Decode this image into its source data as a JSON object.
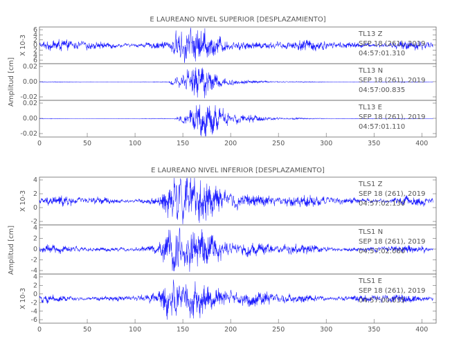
{
  "chart_data": [
    {
      "type": "line",
      "title": "E LAUREANO NIVEL SUPERIOR [DESPLAZAMIENTO]",
      "ylabel": "Amplitud [cm]",
      "x_ticks": [
        "0",
        "50",
        "100",
        "150",
        "200",
        "250",
        "300",
        "350",
        "400"
      ],
      "xlim": [
        0,
        415
      ],
      "channels": [
        {
          "station": "TL13",
          "component": "Z",
          "date": "SEP 18 (261), 2019",
          "time": "04:57:01.310",
          "scale_label": "X 10-3",
          "y_ticks": [
            "6",
            "4",
            "2",
            "0",
            "2",
            "4",
            "6"
          ],
          "ylim": [
            -6,
            6
          ],
          "noise": 0.22,
          "peak": 0.9,
          "onset": 136,
          "peak_time": 150,
          "decay": 26
        },
        {
          "station": "TL13",
          "component": "N",
          "date": "SEP 18 (261), 2019",
          "time": "04:57:00.835",
          "scale_label": "",
          "y_ticks": [
            "0.02",
            "0.00",
            "-0.02"
          ],
          "ylim": [
            -0.03,
            0.03
          ],
          "noise": 0.015,
          "peak": 0.8,
          "onset": 134,
          "peak_time": 162,
          "decay": 24
        },
        {
          "station": "TL13",
          "component": "E",
          "date": "SEP 18 (261), 2019",
          "time": "04:57:01.110",
          "scale_label": "",
          "y_ticks": [
            "0.02",
            "0.00",
            "-0.02"
          ],
          "ylim": [
            -0.026,
            0.026
          ],
          "noise": 0.012,
          "peak": 0.78,
          "onset": 140,
          "peak_time": 172,
          "decay": 28
        }
      ]
    },
    {
      "type": "line",
      "title": "E LAUREANO NIVEL INFERIOR [DESPLAZAMIENTO]",
      "ylabel": "Amplitud [cm]",
      "x_ticks": [
        "0",
        "50",
        "100",
        "150",
        "200",
        "250",
        "300",
        "350",
        "400"
      ],
      "xlim": [
        0,
        415
      ],
      "channels": [
        {
          "station": "TLS1",
          "component": "Z",
          "date": "SEP 18 (261), 2019",
          "time": "04:57:02.130",
          "scale_label": "X 10-3",
          "y_ticks": [
            "4",
            "2",
            "0",
            "-2"
          ],
          "ylim": [
            -3.2,
            4.4
          ],
          "noise": 0.16,
          "peak": 0.92,
          "onset": 124,
          "peak_time": 146,
          "decay": 40
        },
        {
          "station": "TLS1",
          "component": "N",
          "date": "SEP 18 (261), 2019",
          "time": "04:57:02.060",
          "scale_label": "",
          "y_ticks": [
            "4",
            "2",
            "0",
            "-2",
            "-4"
          ],
          "ylim": [
            -5,
            5
          ],
          "noise": 0.13,
          "peak": 0.9,
          "onset": 124,
          "peak_time": 146,
          "decay": 36
        },
        {
          "station": "TLS1",
          "component": "E",
          "date": "SEP 18 (261), 2019",
          "time": "04:57:00.035",
          "scale_label": "X 10-3",
          "y_ticks": [
            "4",
            "2",
            "0",
            "-2",
            "-4",
            "-6"
          ],
          "ylim": [
            -6,
            4.6
          ],
          "noise": 0.14,
          "peak": 0.9,
          "onset": 124,
          "peak_time": 142,
          "decay": 36
        }
      ]
    }
  ]
}
